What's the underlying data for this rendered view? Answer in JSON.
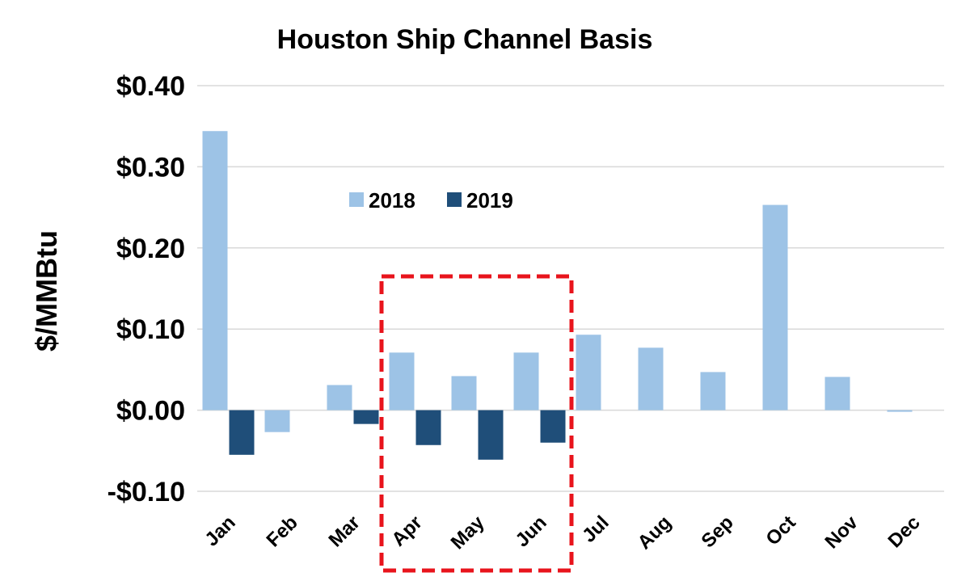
{
  "chart_data": {
    "type": "bar",
    "title": "Houston Ship Channel Basis",
    "ylabel": "$/MMBtu",
    "xlabel": "",
    "ylim": [
      -0.1,
      0.4
    ],
    "yticks": [
      0.4,
      0.3,
      0.2,
      0.1,
      0.0,
      -0.1
    ],
    "ytick_labels": [
      "$0.40",
      "$0.30",
      "$0.20",
      "$0.10",
      "$0.00",
      "-$0.10"
    ],
    "categories": [
      "Jan",
      "Feb",
      "Mar",
      "Apr",
      "May",
      "Jun",
      "Jul",
      "Aug",
      "Sep",
      "Oct",
      "Nov",
      "Dec"
    ],
    "series": [
      {
        "name": "2018",
        "color": "#9dc3e6",
        "values": [
          0.344,
          -0.027,
          0.031,
          0.071,
          0.042,
          0.071,
          0.093,
          0.077,
          0.047,
          0.253,
          0.041,
          -0.002
        ]
      },
      {
        "name": "2019",
        "color": "#1f4e79",
        "values": [
          -0.055,
          null,
          -0.017,
          -0.043,
          -0.061,
          -0.04,
          null,
          null,
          null,
          null,
          null,
          null
        ]
      }
    ],
    "grid": true,
    "legend_placement": "top-center",
    "highlight": {
      "categories": [
        "Apr",
        "May",
        "Jun"
      ],
      "style": "dashed-box",
      "color": "#e8141c"
    }
  }
}
